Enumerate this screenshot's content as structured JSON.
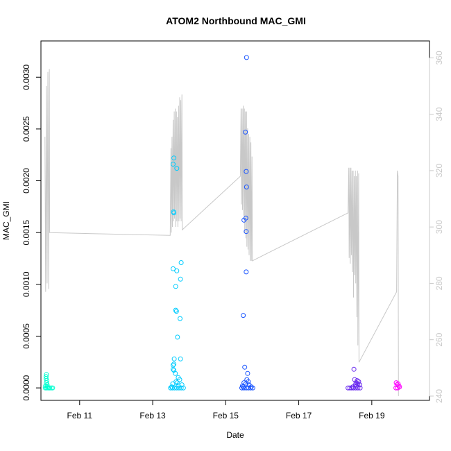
{
  "chart_data": {
    "type": "scatter",
    "title": "ATOM2 Northbound MAC_GMI",
    "xlabel": "Date",
    "ylabel": "MAC_GMI",
    "y2label": "",
    "x_axis": {
      "unit": "day of February",
      "range": [
        9.94,
        20.58
      ],
      "ticks": [
        11,
        13,
        15,
        17,
        19
      ],
      "tick_labels": [
        "Feb 11",
        "Feb 13",
        "Feb 15",
        "Feb 17",
        "Feb 19"
      ]
    },
    "y_axis": {
      "range": [
        -0.00012,
        0.00335
      ],
      "ticks": [
        0.0,
        0.0005,
        0.001,
        0.0015,
        0.002,
        0.0025,
        0.003
      ],
      "tick_labels": [
        "0.0000",
        "0.0005",
        "0.0010",
        "0.0015",
        "0.0020",
        "0.0025",
        "0.0030"
      ]
    },
    "y2_axis": {
      "range": [
        238.5,
        366
      ],
      "ticks": [
        240,
        260,
        280,
        300,
        320,
        340,
        360
      ],
      "tick_labels": [
        "240",
        "260",
        "280",
        "300",
        "320",
        "340",
        "360"
      ],
      "color": "#c8c8c8"
    },
    "grid": false,
    "legend": "none",
    "series": [
      {
        "color": "#00ffd0",
        "marker": "open-circle",
        "points": [
          [
            10.08,
            0.00011
          ],
          [
            10.09,
            0.00013
          ],
          [
            10.08,
            9e-05
          ],
          [
            10.1,
            7e-05
          ],
          [
            10.09,
            5e-05
          ],
          [
            10.11,
            3e-05
          ],
          [
            10.07,
            2e-05
          ],
          [
            10.06,
            0.0
          ],
          [
            10.1,
            0.0
          ],
          [
            10.14,
            0.0
          ],
          [
            10.18,
            0.0
          ],
          [
            10.22,
            0.0
          ],
          [
            10.26,
            0.0
          ],
          [
            10.12,
            1e-05
          ]
        ]
      },
      {
        "color": "#00ccff",
        "marker": "open-circle",
        "points": [
          [
            13.58,
            0.00222
          ],
          [
            13.56,
            0.00216
          ],
          [
            13.66,
            0.00212
          ],
          [
            13.57,
            0.0017
          ],
          [
            13.58,
            0.00169
          ],
          [
            13.56,
            0.00115
          ],
          [
            13.66,
            0.00113
          ],
          [
            13.78,
            0.00121
          ],
          [
            13.76,
            0.00105
          ],
          [
            13.63,
            0.00098
          ],
          [
            13.63,
            0.00075
          ],
          [
            13.65,
            0.00074
          ],
          [
            13.75,
            0.00067
          ],
          [
            13.68,
            0.00049
          ],
          [
            13.76,
            0.00028
          ],
          [
            13.59,
            0.00028
          ],
          [
            13.58,
            0.00023
          ],
          [
            13.56,
            0.00022
          ],
          [
            13.56,
            0.00018
          ],
          [
            13.58,
            0.00017
          ],
          [
            13.62,
            0.00014
          ],
          [
            13.7,
            0.0001
          ],
          [
            13.74,
            8e-05
          ],
          [
            13.64,
            6e-05
          ],
          [
            13.67,
            5e-05
          ],
          [
            13.55,
            4e-05
          ],
          [
            13.8,
            3e-05
          ],
          [
            13.49,
            0.0
          ],
          [
            13.54,
            0.0
          ],
          [
            13.6,
            0.0
          ],
          [
            13.66,
            0.0
          ],
          [
            13.72,
            0.0
          ],
          [
            13.78,
            0.0
          ],
          [
            13.84,
            0.0
          ],
          [
            13.52,
            1e-05
          ],
          [
            13.7,
            2e-05
          ]
        ]
      },
      {
        "color": "#1a55ff",
        "marker": "open-circle",
        "points": [
          [
            15.57,
            0.00319
          ],
          [
            15.54,
            0.00247
          ],
          [
            15.56,
            0.00209
          ],
          [
            15.57,
            0.00194
          ],
          [
            15.55,
            0.00164
          ],
          [
            15.5,
            0.00162
          ],
          [
            15.56,
            0.00151
          ],
          [
            15.56,
            0.00112
          ],
          [
            15.48,
            0.0007
          ],
          [
            15.52,
            0.0002
          ],
          [
            15.6,
            0.00014
          ],
          [
            15.58,
            8e-05
          ],
          [
            15.62,
            6e-05
          ],
          [
            15.5,
            5e-05
          ],
          [
            15.55,
            4e-05
          ],
          [
            15.64,
            3e-05
          ],
          [
            15.46,
            2e-05
          ],
          [
            15.44,
            0.0
          ],
          [
            15.5,
            0.0
          ],
          [
            15.56,
            0.0
          ],
          [
            15.62,
            0.0
          ],
          [
            15.68,
            0.0
          ],
          [
            15.74,
            0.0
          ],
          [
            15.48,
            1e-05
          ],
          [
            15.7,
            1e-05
          ]
        ]
      },
      {
        "color": "#6b2bef",
        "marker": "open-circle",
        "points": [
          [
            18.51,
            0.00018
          ],
          [
            18.53,
            8e-05
          ],
          [
            18.6,
            7e-05
          ],
          [
            18.64,
            6e-05
          ],
          [
            18.57,
            5e-05
          ],
          [
            18.62,
            4e-05
          ],
          [
            18.55,
            3e-05
          ],
          [
            18.67,
            3e-05
          ],
          [
            18.35,
            0.0
          ],
          [
            18.4,
            0.0
          ],
          [
            18.45,
            0.0
          ],
          [
            18.5,
            0.0
          ],
          [
            18.56,
            0.0
          ],
          [
            18.62,
            0.0
          ],
          [
            18.68,
            0.0
          ],
          [
            18.48,
            1e-05
          ],
          [
            18.58,
            2e-05
          ]
        ]
      },
      {
        "color": "#ff00ff",
        "marker": "open-circle",
        "points": [
          [
            19.67,
            5e-05
          ],
          [
            19.72,
            4e-05
          ],
          [
            19.69,
            3e-05
          ],
          [
            19.74,
            2e-05
          ],
          [
            19.66,
            0.0
          ],
          [
            19.71,
            0.0
          ],
          [
            19.76,
            1e-05
          ]
        ]
      }
    ],
    "line_series": {
      "color": "#c8c8c8",
      "axis": "y2",
      "points": [
        [
          10.05,
          332
        ],
        [
          10.07,
          277
        ],
        [
          10.09,
          350
        ],
        [
          10.11,
          280
        ],
        [
          10.13,
          355
        ],
        [
          10.15,
          278
        ],
        [
          10.17,
          356
        ],
        [
          10.18,
          298
        ],
        [
          13.48,
          297
        ],
        [
          13.5,
          328
        ],
        [
          13.51,
          298
        ],
        [
          13.53,
          332
        ],
        [
          13.54,
          300
        ],
        [
          13.56,
          338
        ],
        [
          13.57,
          302
        ],
        [
          13.59,
          341
        ],
        [
          13.6,
          303
        ],
        [
          13.62,
          342
        ],
        [
          13.63,
          300
        ],
        [
          13.65,
          341
        ],
        [
          13.66,
          302
        ],
        [
          13.68,
          339
        ],
        [
          13.69,
          300
        ],
        [
          13.71,
          343
        ],
        [
          13.72,
          302
        ],
        [
          13.74,
          346
        ],
        [
          13.75,
          303
        ],
        [
          13.77,
          345
        ],
        [
          13.78,
          302
        ],
        [
          13.8,
          347
        ],
        [
          13.81,
          299
        ],
        [
          15.4,
          318
        ],
        [
          15.42,
          342
        ],
        [
          15.43,
          308
        ],
        [
          15.45,
          342
        ],
        [
          15.46,
          306
        ],
        [
          15.48,
          343
        ],
        [
          15.49,
          304
        ],
        [
          15.51,
          342
        ],
        [
          15.52,
          298
        ],
        [
          15.54,
          341
        ],
        [
          15.55,
          296
        ],
        [
          15.57,
          341
        ],
        [
          15.58,
          293
        ],
        [
          15.6,
          335
        ],
        [
          15.61,
          292
        ],
        [
          15.63,
          333
        ],
        [
          15.64,
          290
        ],
        [
          15.66,
          332
        ],
        [
          15.67,
          288
        ],
        [
          15.69,
          330
        ],
        [
          15.7,
          288
        ],
        [
          15.72,
          325
        ],
        [
          15.73,
          288
        ],
        [
          18.35,
          305
        ],
        [
          18.37,
          321
        ],
        [
          18.38,
          289
        ],
        [
          18.4,
          321
        ],
        [
          18.41,
          287
        ],
        [
          18.43,
          321
        ],
        [
          18.44,
          290
        ],
        [
          18.46,
          320
        ],
        [
          18.47,
          284
        ],
        [
          18.49,
          320
        ],
        [
          18.5,
          275
        ],
        [
          18.52,
          318
        ],
        [
          18.53,
          283
        ],
        [
          18.55,
          320
        ],
        [
          18.56,
          280
        ],
        [
          18.58,
          318
        ],
        [
          18.59,
          268
        ],
        [
          18.61,
          320
        ],
        [
          18.62,
          258
        ],
        [
          18.64,
          319
        ],
        [
          18.65,
          252
        ],
        [
          19.68,
          277
        ],
        [
          19.7,
          320
        ],
        [
          19.72,
          318
        ],
        [
          19.73,
          240
        ]
      ]
    }
  }
}
